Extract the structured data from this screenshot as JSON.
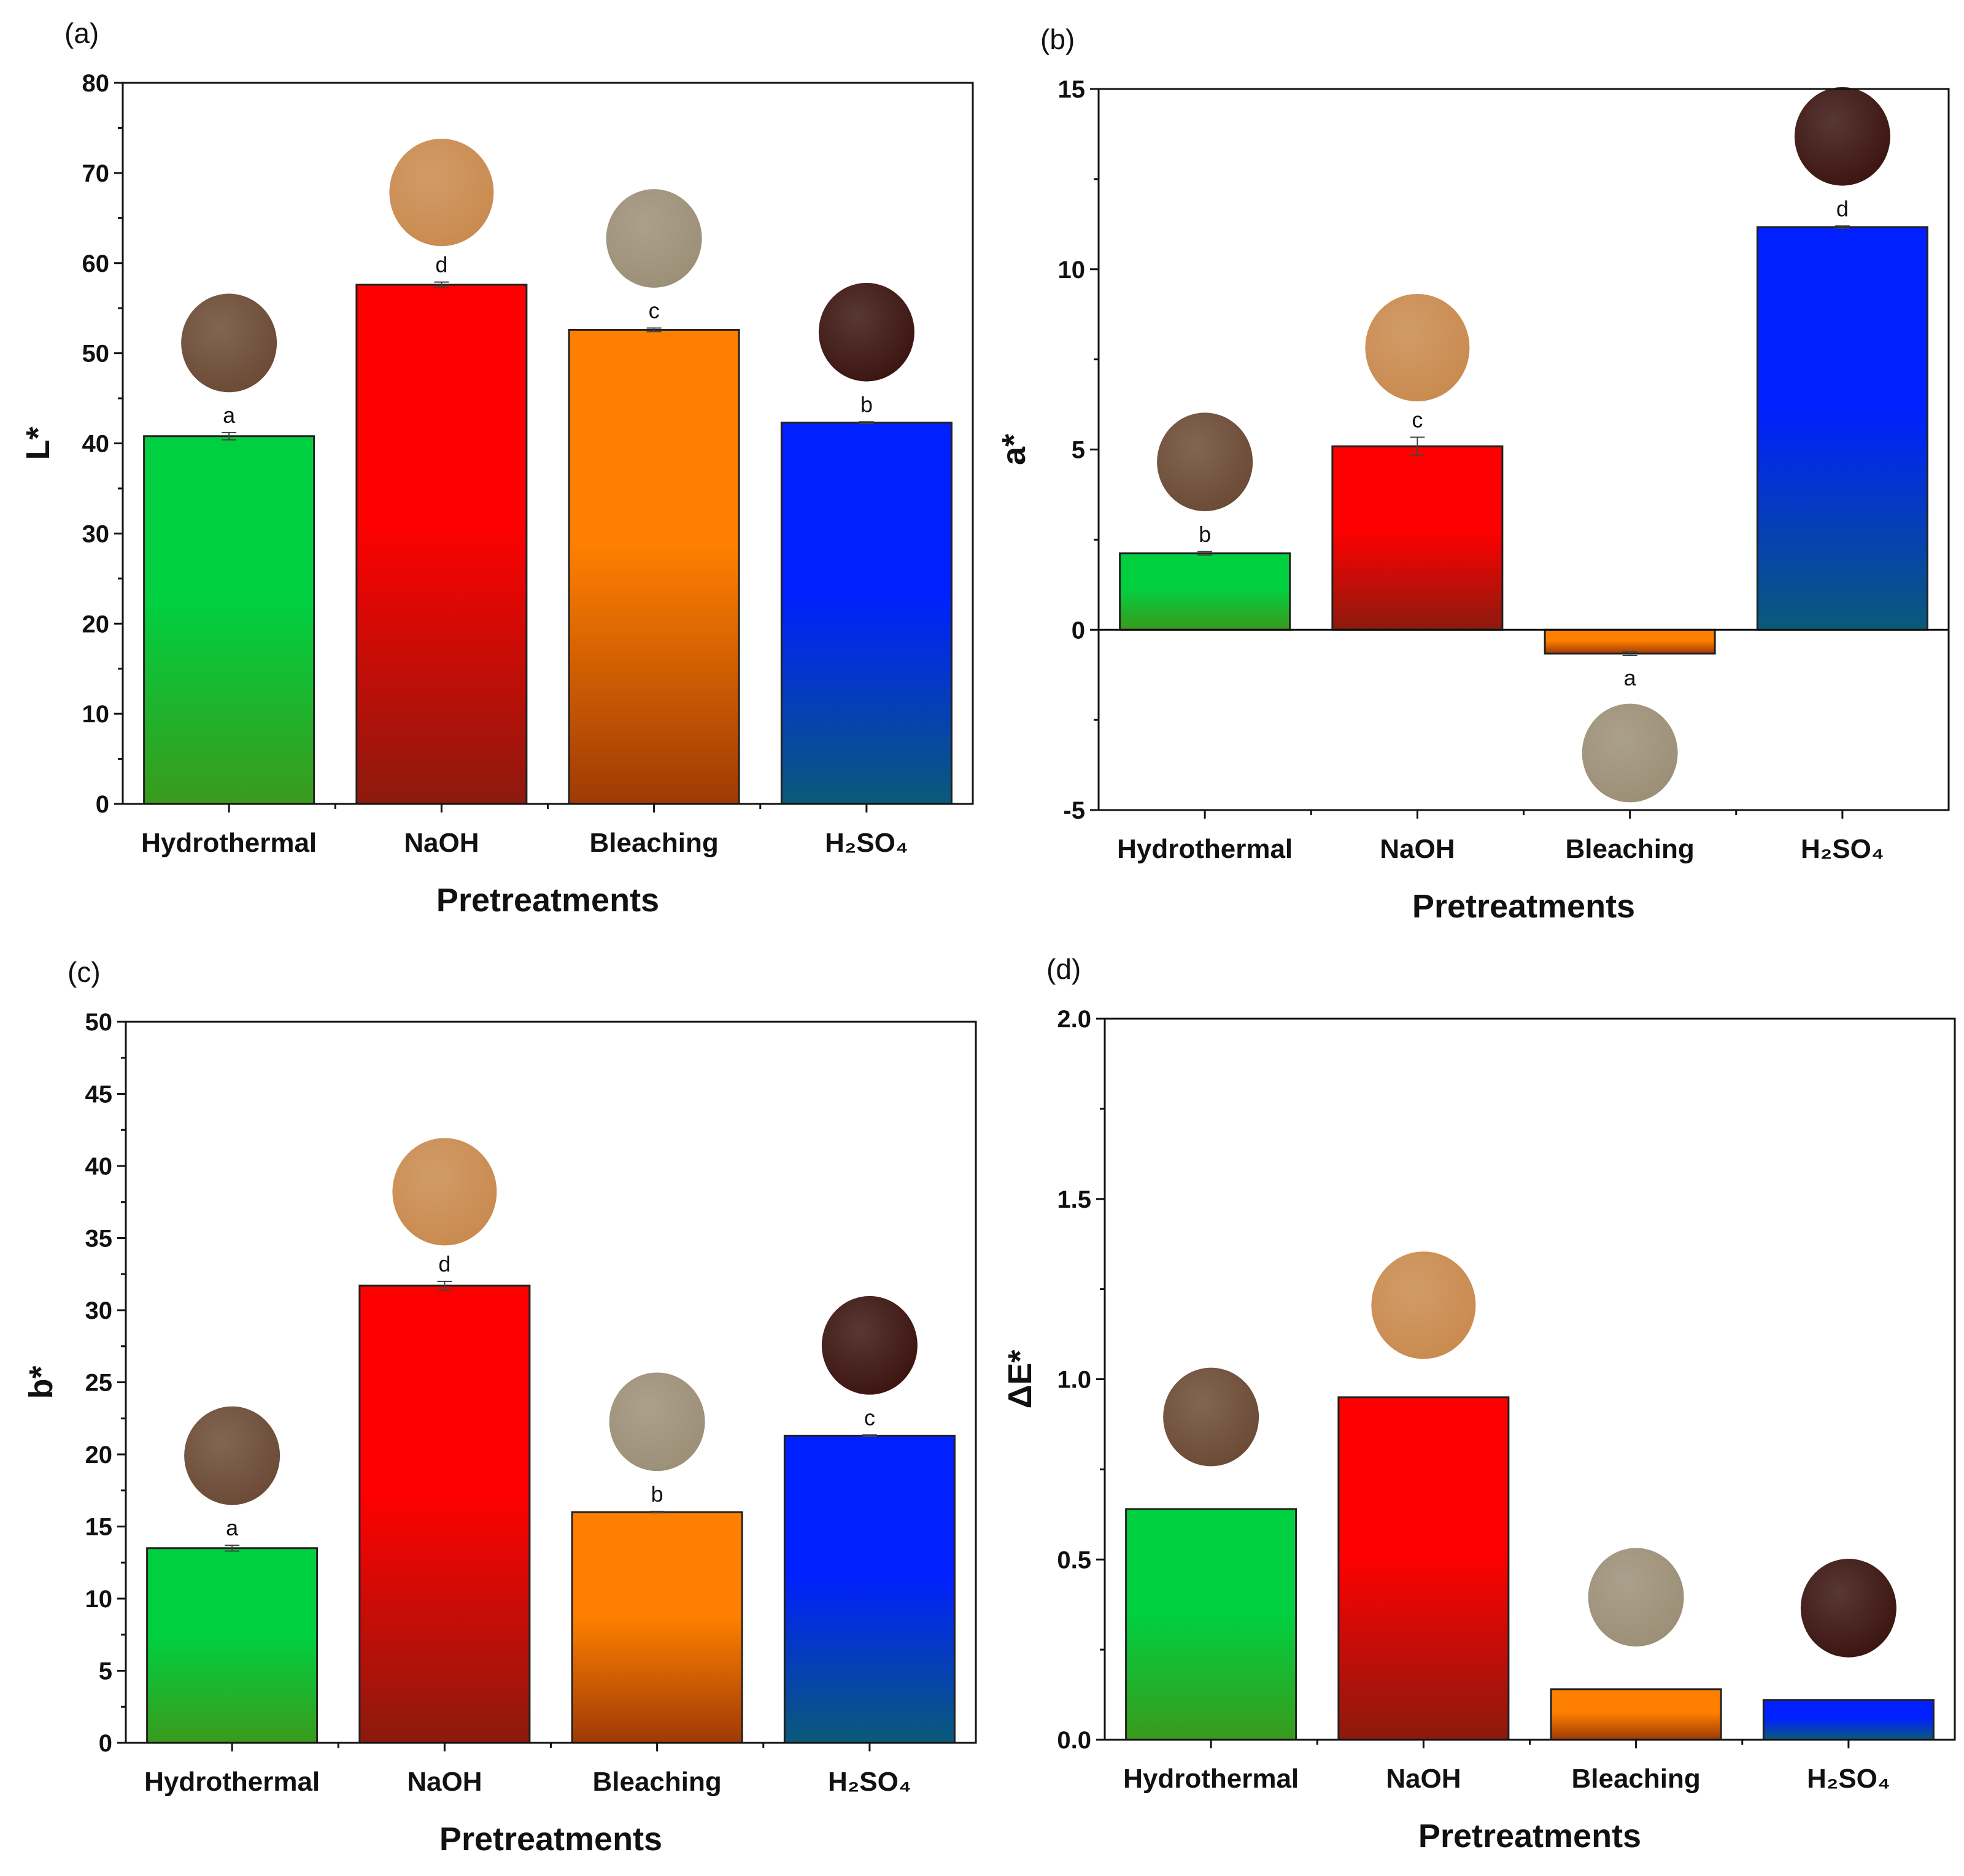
{
  "colors": {
    "bar_gradients": [
      [
        "#00d040",
        "#3a9a1c"
      ],
      [
        "#ff0000",
        "#8c1a0e"
      ],
      [
        "#ff8000",
        "#9e3a05"
      ],
      [
        "#0020ff",
        "#0a5a78"
      ]
    ],
    "sample_colors": [
      "#6b4a35",
      "#c98a4e",
      "#9c8f77",
      "#3b1410"
    ]
  },
  "chart_data": [
    {
      "type": "bar",
      "panel_label": "(a)",
      "categories": [
        "Hydrothermal",
        "NaOH",
        "Bleaching",
        "H₂SO₄"
      ],
      "values": [
        40.8,
        57.6,
        52.6,
        42.3
      ],
      "errors": [
        0.4,
        0.3,
        0.2,
        0.1
      ],
      "letters": [
        "a",
        "d",
        "c",
        "b"
      ],
      "xlabel": "Pretreatments",
      "ylabel": "L*",
      "ylim": [
        0,
        80
      ],
      "yticks": [
        0,
        10,
        20,
        30,
        40,
        50,
        60,
        70,
        80
      ],
      "tick_labels": [
        "0",
        "10",
        "20",
        "30",
        "40",
        "50",
        "60",
        "70",
        "80"
      ]
    },
    {
      "type": "bar",
      "panel_label": "(b)",
      "categories": [
        "Hydrothermal",
        "NaOH",
        "Bleaching",
        "H₂SO₄"
      ],
      "values": [
        2.12,
        5.09,
        -0.66,
        11.17
      ],
      "errors": [
        0.05,
        0.25,
        0.05,
        0.03
      ],
      "letters": [
        "b",
        "c",
        "a",
        "d"
      ],
      "xlabel": "Pretreatments",
      "ylabel": "a*",
      "ylim": [
        -5,
        15
      ],
      "yticks": [
        -5,
        0,
        5,
        10,
        15
      ],
      "tick_labels": [
        "-5",
        "0",
        "5",
        "10",
        "15"
      ]
    },
    {
      "type": "bar",
      "panel_label": "(c)",
      "categories": [
        "Hydrothermal",
        "NaOH",
        "Bleaching",
        "H₂SO₄"
      ],
      "values": [
        13.5,
        31.7,
        16.0,
        21.3
      ],
      "errors": [
        0.2,
        0.3,
        0.05,
        0.05
      ],
      "letters": [
        "a",
        "d",
        "b",
        "c"
      ],
      "xlabel": "Pretreatments",
      "ylabel": "b*",
      "ylim": [
        0,
        50
      ],
      "yticks": [
        0,
        5,
        10,
        15,
        20,
        25,
        30,
        35,
        40,
        45,
        50
      ],
      "tick_labels": [
        "0",
        "5",
        "10",
        "15",
        "20",
        "25",
        "30",
        "35",
        "40",
        "45",
        "50"
      ]
    },
    {
      "type": "bar",
      "panel_label": "(d)",
      "categories": [
        "Hydrothermal",
        "NaOH",
        "Bleaching",
        "H₂SO₄"
      ],
      "values": [
        0.64,
        0.95,
        0.14,
        0.11
      ],
      "errors": [
        0,
        0,
        0,
        0
      ],
      "letters": [
        "",
        "",
        "",
        ""
      ],
      "xlabel": "Pretreatments",
      "ylabel": "ΔE*",
      "ylim": [
        0,
        2.0
      ],
      "yticks": [
        0,
        0.5,
        1.0,
        1.5,
        2.0
      ],
      "tick_labels": [
        "0.0",
        "0.5",
        "1.0",
        "1.5",
        "2.0"
      ]
    }
  ]
}
